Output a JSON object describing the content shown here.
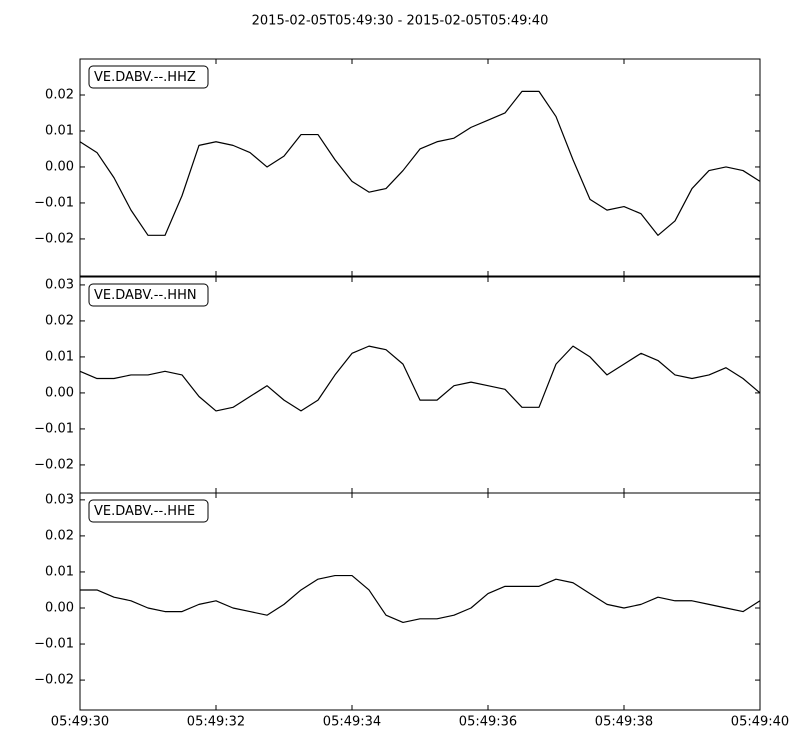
{
  "title": "2015-02-05T05:49:30  -  2015-02-05T05:49:40",
  "chart_data": [
    {
      "type": "line",
      "x": [
        "05:49:30",
        "05:49:30.25",
        "05:49:30.5",
        "05:49:30.75",
        "05:49:31",
        "05:49:31.25",
        "05:49:31.5",
        "05:49:31.75",
        "05:49:32",
        "05:49:32.25",
        "05:49:32.5",
        "05:49:32.75",
        "05:49:33",
        "05:49:33.25",
        "05:49:33.5",
        "05:49:33.75",
        "05:49:34",
        "05:49:34.25",
        "05:49:34.5",
        "05:49:34.75",
        "05:49:35",
        "05:49:35.25",
        "05:49:35.5",
        "05:49:35.75",
        "05:49:36",
        "05:49:36.25",
        "05:49:36.5",
        "05:49:36.75",
        "05:49:37",
        "05:49:37.25",
        "05:49:37.5",
        "05:49:37.75",
        "05:49:38",
        "05:49:38.25",
        "05:49:38.5",
        "05:49:38.75",
        "05:49:39",
        "05:49:39.25",
        "05:49:39.5",
        "05:49:39.75",
        "05:49:40"
      ],
      "series": [
        {
          "name": "VE.DABV.--.HHZ",
          "color": "#000000",
          "values": [
            0.007,
            0.004,
            -0.003,
            -0.012,
            -0.019,
            -0.019,
            -0.008,
            0.006,
            0.007,
            0.006,
            0.004,
            0.0,
            0.003,
            0.009,
            0.009,
            0.002,
            -0.004,
            -0.007,
            -0.006,
            -0.001,
            0.005,
            0.007,
            0.008,
            0.011,
            0.013,
            0.015,
            0.021,
            0.021,
            0.014,
            0.002,
            -0.009,
            -0.012,
            -0.011,
            -0.013,
            -0.019,
            -0.015,
            -0.006,
            -0.001,
            0.0,
            -0.001,
            -0.004
          ]
        }
      ],
      "xlim": [
        "05:49:30",
        "05:49:40"
      ],
      "xticks": [
        "05:49:30",
        "05:49:32",
        "05:49:34",
        "05:49:36",
        "05:49:38",
        "05:49:40"
      ],
      "ylim": [
        -0.0303,
        0.03
      ],
      "yticks": [
        {
          "value": -0.02,
          "label": "−0.02"
        },
        {
          "value": -0.01,
          "label": "−0.01"
        },
        {
          "value": 0,
          "label": "0.00"
        },
        0.01,
        0.02
      ]
    },
    {
      "type": "line",
      "x": [
        "05:49:30",
        "05:49:30.25",
        "05:49:30.5",
        "05:49:30.75",
        "05:49:31",
        "05:49:31.25",
        "05:49:31.5",
        "05:49:31.75",
        "05:49:32",
        "05:49:32.25",
        "05:49:32.5",
        "05:49:32.75",
        "05:49:33",
        "05:49:33.25",
        "05:49:33.5",
        "05:49:33.75",
        "05:49:34",
        "05:49:34.25",
        "05:49:34.5",
        "05:49:34.75",
        "05:49:35",
        "05:49:35.25",
        "05:49:35.5",
        "05:49:35.75",
        "05:49:36",
        "05:49:36.25",
        "05:49:36.5",
        "05:49:36.75",
        "05:49:37",
        "05:49:37.25",
        "05:49:37.5",
        "05:49:37.75",
        "05:49:38",
        "05:49:38.25",
        "05:49:38.5",
        "05:49:38.75",
        "05:49:39",
        "05:49:39.25",
        "05:49:39.5",
        "05:49:39.75",
        "05:49:40"
      ],
      "series": [
        {
          "name": "VE.DABV.--.HHN",
          "color": "#000000",
          "values": [
            0.006,
            0.004,
            0.004,
            0.005,
            0.005,
            0.006,
            0.005,
            -0.001,
            -0.005,
            -0.004,
            -0.001,
            0.002,
            -0.002,
            -0.005,
            -0.002,
            0.005,
            0.011,
            0.013,
            0.012,
            0.008,
            -0.002,
            -0.002,
            0.002,
            0.003,
            0.002,
            0.001,
            -0.004,
            -0.004,
            0.008,
            0.013,
            0.01,
            0.005,
            0.008,
            0.011,
            0.009,
            0.005,
            0.004,
            0.005,
            0.007,
            0.004,
            0.0
          ]
        }
      ],
      "xlim": [
        "05:49:30",
        "05:49:40"
      ],
      "xticks": [
        "05:49:30",
        "05:49:32",
        "05:49:34",
        "05:49:36",
        "05:49:38",
        "05:49:40"
      ],
      "ylim": [
        -0.0278,
        0.0322
      ],
      "yticks": [
        {
          "value": -0.02,
          "label": "−0.02"
        },
        {
          "value": -0.01,
          "label": "−0.01"
        },
        {
          "value": 0,
          "label": "0.00"
        },
        0.01,
        0.02,
        0.03
      ]
    },
    {
      "type": "line",
      "x": [
        "05:49:30",
        "05:49:30.25",
        "05:49:30.5",
        "05:49:30.75",
        "05:49:31",
        "05:49:31.25",
        "05:49:31.5",
        "05:49:31.75",
        "05:49:32",
        "05:49:32.25",
        "05:49:32.5",
        "05:49:32.75",
        "05:49:33",
        "05:49:33.25",
        "05:49:33.5",
        "05:49:33.75",
        "05:49:34",
        "05:49:34.25",
        "05:49:34.5",
        "05:49:34.75",
        "05:49:35",
        "05:49:35.25",
        "05:49:35.5",
        "05:49:35.75",
        "05:49:36",
        "05:49:36.25",
        "05:49:36.5",
        "05:49:36.75",
        "05:49:37",
        "05:49:37.25",
        "05:49:37.5",
        "05:49:37.75",
        "05:49:38",
        "05:49:38.25",
        "05:49:38.5",
        "05:49:38.75",
        "05:49:39",
        "05:49:39.25",
        "05:49:39.5",
        "05:49:39.75",
        "05:49:40"
      ],
      "series": [
        {
          "name": "VE.DABV.--.HHE",
          "color": "#000000",
          "values": [
            0.005,
            0.005,
            0.003,
            0.002,
            0.0,
            -0.001,
            -0.001,
            0.001,
            0.002,
            0.0,
            -0.001,
            -0.002,
            0.001,
            0.005,
            0.008,
            0.009,
            0.009,
            0.005,
            -0.002,
            -0.004,
            -0.003,
            -0.003,
            -0.002,
            0.0,
            0.004,
            0.006,
            0.006,
            0.006,
            0.008,
            0.007,
            0.004,
            0.001,
            0.0,
            0.001,
            0.003,
            0.002,
            0.002,
            0.001,
            0.0,
            -0.001,
            0.002
          ]
        }
      ],
      "xlim": [
        "05:49:30",
        "05:49:40"
      ],
      "xticks": [
        "05:49:30",
        "05:49:32",
        "05:49:34",
        "05:49:36",
        "05:49:38",
        "05:49:40"
      ],
      "ylim": [
        -0.0283,
        0.0319
      ],
      "yticks": [
        {
          "value": -0.02,
          "label": "−0.02"
        },
        {
          "value": -0.01,
          "label": "−0.01"
        },
        {
          "value": 0,
          "label": "0.00"
        },
        0.01,
        0.02,
        0.03
      ]
    }
  ]
}
